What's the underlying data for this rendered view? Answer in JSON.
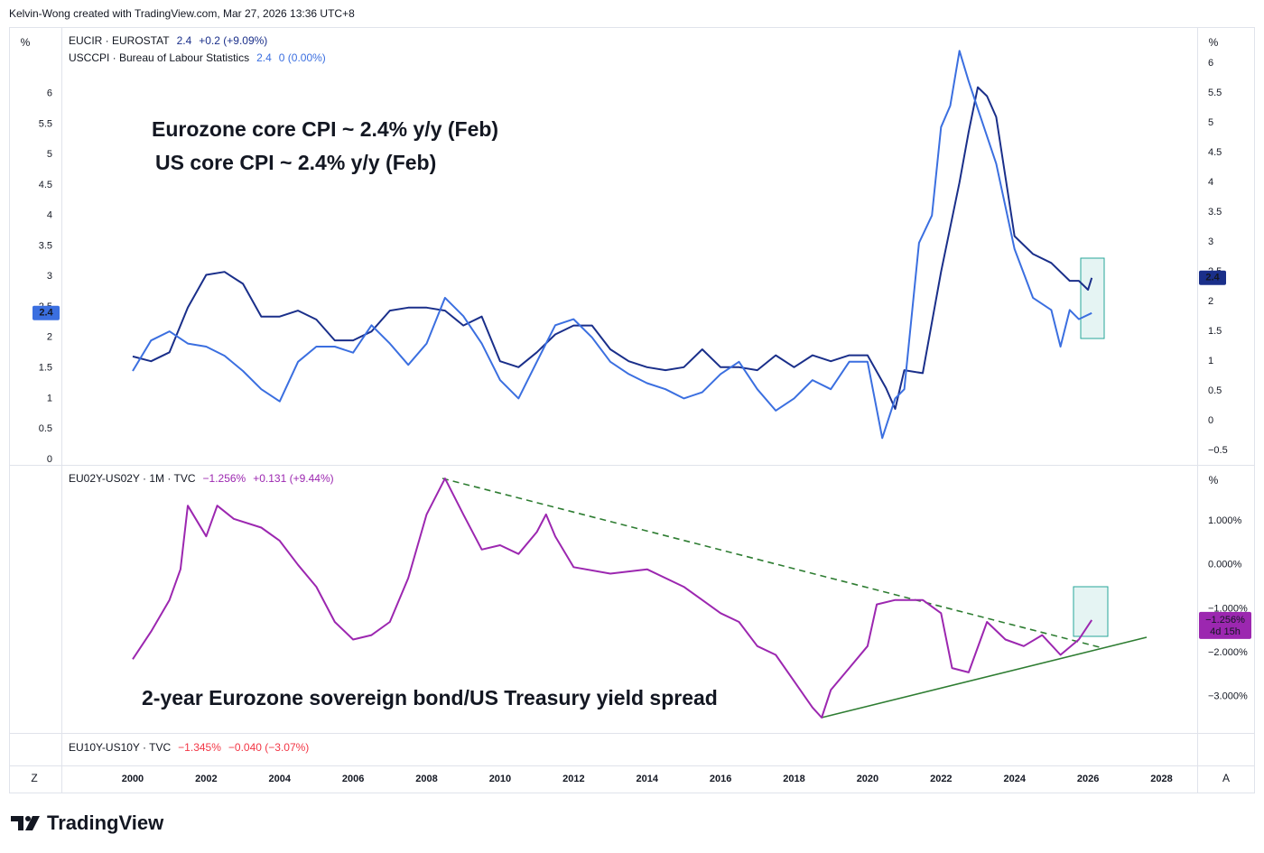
{
  "header": {
    "credit": "Kelvin-Wong created with TradingView.com, Mar 27, 2026 13:36 UTC+8"
  },
  "brand": "TradingView",
  "time_axis": {
    "left_button": "Z",
    "right_button": "A"
  },
  "third_pane": {
    "symbol": "EU10Y-US10Y · TVC",
    "value": "−1.345%",
    "change": "−0.040 (−3.07%)",
    "color": "#f23645"
  },
  "chart_data": [
    {
      "type": "line",
      "unit": "%",
      "yaxis_position": "left",
      "xlim": [
        1998.06,
        2028.97
      ],
      "xticks": [
        2000,
        2002,
        2004,
        2006,
        2008,
        2010,
        2012,
        2014,
        2016,
        2018,
        2020,
        2022,
        2024,
        2026,
        2028
      ],
      "ylim": [
        -0.09,
        7.09
      ],
      "yticks": [
        0,
        0.5,
        1,
        1.5,
        2,
        2.5,
        3,
        3.5,
        4,
        4.5,
        5,
        5.5,
        6
      ],
      "y2lim": [
        -0.74,
        6.61
      ],
      "y2ticks": [
        {
          "value": -0.5,
          "label": "−0.5"
        },
        0,
        0.5,
        1,
        1.5,
        2,
        2.5,
        3,
        3.5,
        4,
        4.5,
        5,
        5.5,
        6
      ],
      "grid": false,
      "annotations": [
        {
          "text": "Eurozone core CPI ~ 2.4% y/y (Feb)",
          "color": "#1a2f8a"
        },
        {
          "text": "US core CPI ~ 2.4% y/y (Feb)",
          "color": "#3b6fe0"
        }
      ],
      "series": [
        {
          "name": "EUCIR · EUROSTAT",
          "color": "#1a2f8a",
          "axis": "y2",
          "legend_value": "2.4",
          "legend_change": "+0.2 (+9.09%)",
          "x": [
            2000,
            2000.5,
            2001,
            2001.5,
            2002,
            2002.5,
            2003,
            2003.5,
            2004,
            2004.5,
            2005,
            2005.5,
            2006,
            2006.5,
            2007,
            2007.5,
            2008,
            2008.5,
            2009,
            2009.5,
            2010,
            2010.5,
            2011,
            2011.5,
            2012,
            2012.5,
            2013,
            2013.5,
            2014,
            2014.5,
            2015,
            2015.5,
            2016,
            2016.5,
            2017,
            2017.5,
            2018,
            2018.5,
            2019,
            2019.5,
            2020,
            2020.5,
            2020.75,
            2021,
            2021.5,
            2022,
            2022.5,
            2022.75,
            2023,
            2023.25,
            2023.5,
            2024,
            2024.5,
            2025,
            2025.5,
            2025.75,
            2026,
            2026.1
          ],
          "values": [
            1.08,
            1.0,
            1.15,
            1.9,
            2.45,
            2.5,
            2.3,
            1.75,
            1.75,
            1.85,
            1.7,
            1.35,
            1.35,
            1.5,
            1.85,
            1.9,
            1.9,
            1.85,
            1.6,
            1.75,
            1.0,
            0.9,
            1.15,
            1.45,
            1.6,
            1.6,
            1.2,
            1.0,
            0.9,
            0.85,
            0.9,
            1.2,
            0.9,
            0.9,
            0.85,
            1.1,
            0.9,
            1.1,
            1.0,
            1.1,
            1.1,
            0.55,
            0.2,
            0.85,
            0.8,
            2.5,
            4.0,
            4.85,
            5.6,
            5.45,
            5.1,
            3.1,
            2.8,
            2.65,
            2.35,
            2.35,
            2.2,
            2.4
          ]
        },
        {
          "name": "USCCPI · Bureau of Labour Statistics",
          "color": "#3b6fe0",
          "axis": "y",
          "legend_value": "2.4",
          "legend_change": "0 (0.00%)",
          "x": [
            2000,
            2000.5,
            2001,
            2001.5,
            2002,
            2002.5,
            2003,
            2003.5,
            2004,
            2004.5,
            2005,
            2005.5,
            2006,
            2006.5,
            2007,
            2007.5,
            2008,
            2008.5,
            2009,
            2009.5,
            2010,
            2010.5,
            2011,
            2011.5,
            2012,
            2012.5,
            2013,
            2013.5,
            2014,
            2014.5,
            2015,
            2015.5,
            2016,
            2016.5,
            2017,
            2017.5,
            2018,
            2018.5,
            2019,
            2019.5,
            2020,
            2020.4,
            2020.75,
            2021,
            2021.4,
            2021.75,
            2022,
            2022.25,
            2022.5,
            2022.75,
            2023,
            2023.5,
            2024,
            2024.5,
            2025,
            2025.25,
            2025.5,
            2025.75,
            2026.1
          ],
          "values": [
            1.45,
            1.95,
            2.1,
            1.9,
            1.85,
            1.7,
            1.45,
            1.15,
            0.95,
            1.6,
            1.85,
            1.85,
            1.75,
            2.2,
            1.9,
            1.55,
            1.9,
            2.65,
            2.35,
            1.9,
            1.3,
            1.0,
            1.6,
            2.2,
            2.3,
            2.0,
            1.6,
            1.4,
            1.25,
            1.15,
            1.0,
            1.1,
            1.4,
            1.6,
            1.15,
            0.8,
            1.0,
            1.3,
            1.15,
            1.6,
            1.6,
            0.35,
            1.0,
            1.15,
            3.55,
            4.0,
            5.45,
            5.8,
            6.7,
            6.2,
            5.75,
            4.85,
            3.45,
            2.65,
            2.45,
            1.85,
            2.45,
            2.3,
            2.4
          ]
        }
      ]
    },
    {
      "type": "line",
      "unit": "%",
      "yaxis_position": "right",
      "ylim": [
        -3.83,
        2.28
      ],
      "yticks": [
        {
          "value": 1,
          "label": "1.000%"
        },
        {
          "value": 0,
          "label": "0.000%"
        },
        {
          "value": -1,
          "label": "−1.000%"
        },
        {
          "value": -2,
          "label": "−2.000%"
        },
        {
          "value": -3,
          "label": "−3.000%"
        }
      ],
      "grid": false,
      "annotations": [
        {
          "text": "2-year Eurozone sovereign bond/US Treasury yield spread",
          "color": "#9c27b0"
        }
      ],
      "series": [
        {
          "name": "EU02Y-US02Y · 1M · TVC",
          "color": "#9c27b0",
          "axis": "y",
          "legend_value": "−1.256%",
          "legend_change": "+0.131 (+9.44%)",
          "last_label": "−1.256%",
          "countdown": "4d 15h",
          "x": [
            2000,
            2000.5,
            2001,
            2001.3,
            2001.5,
            2002,
            2002.3,
            2002.75,
            2003.5,
            2004,
            2004.5,
            2005,
            2005.5,
            2006,
            2006.5,
            2007,
            2007.5,
            2008,
            2008.5,
            2009,
            2009.5,
            2010,
            2010.5,
            2011,
            2011.25,
            2011.5,
            2012,
            2013,
            2014,
            2015,
            2015.5,
            2016,
            2016.5,
            2017,
            2017.5,
            2018,
            2018.5,
            2018.75,
            2019,
            2019.5,
            2020,
            2020.25,
            2020.75,
            2021.5,
            2022,
            2022.3,
            2022.75,
            2023.25,
            2023.75,
            2024.25,
            2024.75,
            2025.25,
            2025.75,
            2026.1
          ],
          "values": [
            -2.15,
            -1.52,
            -0.8,
            -0.1,
            1.35,
            0.65,
            1.35,
            1.05,
            0.85,
            0.55,
            0.0,
            -0.5,
            -1.3,
            -1.7,
            -1.6,
            -1.3,
            -0.3,
            1.15,
            1.97,
            1.15,
            0.35,
            0.45,
            0.25,
            0.75,
            1.15,
            0.65,
            -0.05,
            -0.2,
            -0.1,
            -0.5,
            -0.8,
            -1.1,
            -1.3,
            -1.85,
            -2.05,
            -2.65,
            -3.25,
            -3.48,
            -2.85,
            -2.35,
            -1.85,
            -0.9,
            -0.8,
            -0.8,
            -1.1,
            -2.35,
            -2.45,
            -1.3,
            -1.7,
            -1.85,
            -1.6,
            -2.05,
            -1.7,
            -1.256
          ]
        }
      ]
    }
  ]
}
